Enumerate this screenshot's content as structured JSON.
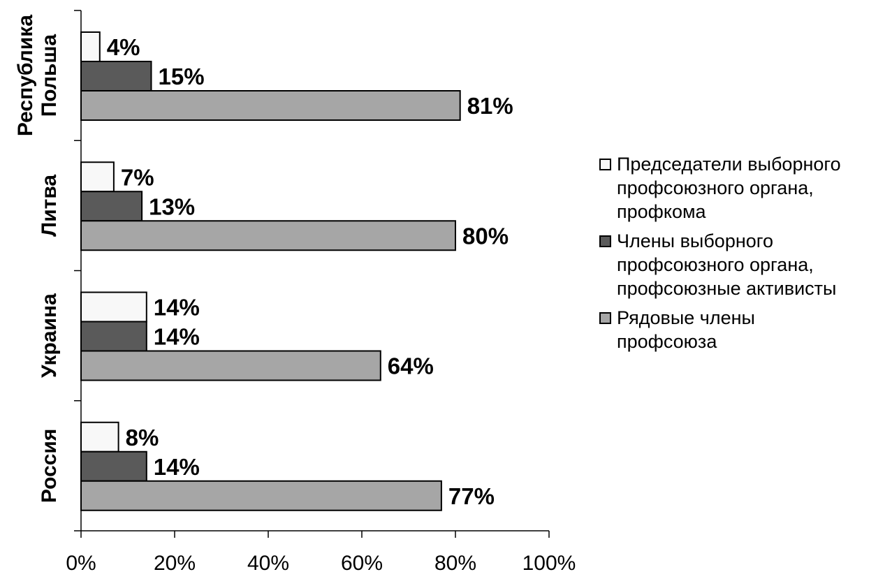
{
  "chart_data": {
    "type": "bar",
    "orientation": "horizontal",
    "categories": [
      "Республика\nПольша",
      "Литва",
      "Украина",
      "Россия"
    ],
    "series": [
      {
        "name": "Председатели выборного\nпрофсоюзного органа,\nпрофкома",
        "color": "#f8f8f8",
        "values": [
          4,
          7,
          14,
          8
        ]
      },
      {
        "name": "Члены выборного\nпрофсоюзного органа,\nпрофсоюзные активисты",
        "color": "#5a5a5a",
        "values": [
          15,
          13,
          14,
          14
        ]
      },
      {
        "name": "Рядовые члены\nпрофсоюза",
        "color": "#a6a6a6",
        "values": [
          81,
          80,
          64,
          77
        ]
      }
    ],
    "data_labels": [
      [
        "4%",
        "7%",
        "14%",
        "8%"
      ],
      [
        "15%",
        "13%",
        "14%",
        "14%"
      ],
      [
        "81%",
        "80%",
        "64%",
        "77%"
      ]
    ],
    "x_ticks": [
      0,
      20,
      40,
      60,
      80,
      100
    ],
    "x_tick_labels": [
      "0%",
      "20%",
      "40%",
      "60%",
      "80%",
      "100%"
    ],
    "xlim": [
      0,
      100
    ],
    "grid": false,
    "legend_position": "right"
  }
}
